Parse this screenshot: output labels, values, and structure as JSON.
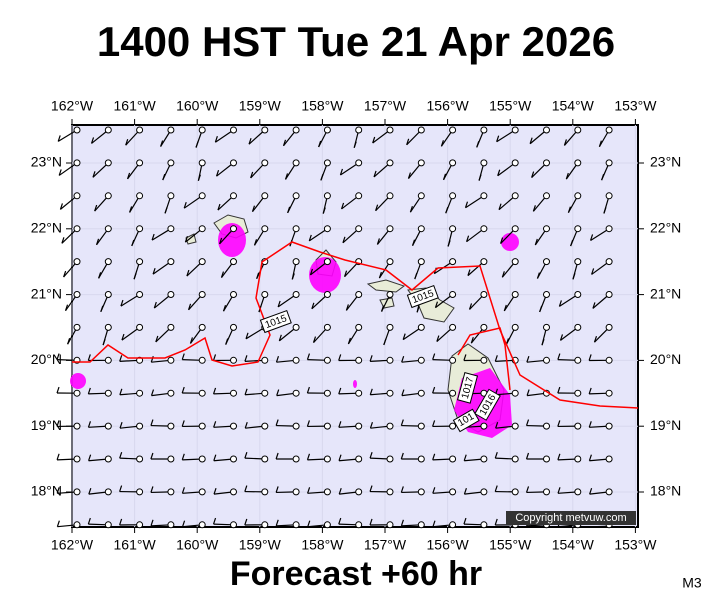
{
  "title": "1400 HST Tue 21 Apr 2026",
  "footer": "Forecast +60 hr",
  "corner_label": "M3",
  "copyright": "Copyright metvuw.com",
  "lon_labels": [
    "162°W",
    "161°W",
    "160°W",
    "159°W",
    "158°W",
    "157°W",
    "156°W",
    "155°W",
    "154°W",
    "153°W"
  ],
  "lat_labels": [
    "23°N",
    "22°N",
    "21°N",
    "20°N",
    "19°N",
    "18°N"
  ],
  "isobar_labels": [
    "1015",
    "1015",
    "1017",
    "1016",
    "101"
  ]
}
